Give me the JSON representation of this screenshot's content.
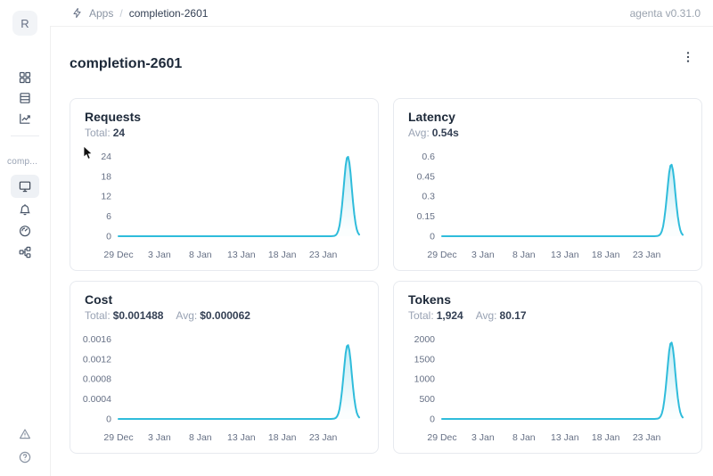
{
  "header": {
    "breadcrumb": {
      "icon": "lightning-icon",
      "apps_label": "Apps",
      "separator": "/",
      "current": "completion-2601"
    },
    "version": "agenta v0.31.0"
  },
  "sidebar": {
    "avatar_letter": "R",
    "workspace_label": "comp...",
    "top_items": [
      {
        "icon": "apps-grid-icon"
      },
      {
        "icon": "rows-icon"
      },
      {
        "icon": "line-chart-icon"
      }
    ],
    "app_items": [
      {
        "icon": "monitor-icon",
        "selected": true
      },
      {
        "icon": "bell-icon",
        "selected": false
      },
      {
        "icon": "gauge-icon",
        "selected": false
      },
      {
        "icon": "tree-structure-icon",
        "selected": false
      }
    ],
    "bottom_items": [
      {
        "icon": "alert-triangle-icon"
      },
      {
        "icon": "help-circle-icon"
      }
    ]
  },
  "page": {
    "title": "completion-2601",
    "kebab_icon": "kebab-menu-icon"
  },
  "colors": {
    "accent": "#2fbcdb",
    "tick_text": "#667085",
    "card_border": "#e7eaef"
  },
  "cards": [
    {
      "title": "Requests",
      "stats": [
        {
          "label": "Total:",
          "value": "24"
        }
      ],
      "chart_data": {
        "type": "area",
        "title": "Requests",
        "x_ticks": [
          "29 Dec",
          "3 Jan",
          "8 Jan",
          "13 Jan",
          "18 Jan",
          "23 Jan"
        ],
        "x_tick_days": [
          0,
          5,
          10,
          15,
          20,
          25
        ],
        "y_ticks": [
          {
            "value": 0,
            "label": "0"
          },
          {
            "value": 6,
            "label": "6"
          },
          {
            "value": 12,
            "label": "12"
          },
          {
            "value": 18,
            "label": "18"
          },
          {
            "value": 24,
            "label": "24"
          }
        ],
        "ylim": [
          0,
          25.2
        ],
        "domain_days": [
          0,
          29.4
        ],
        "baseline_value": 0,
        "peak": {
          "day": 28,
          "date": "26 Jan",
          "value": 24
        },
        "note": "daily requests flat at 0 from 29 Dec to 25 Jan, single spike of 24 on 26 Jan"
      }
    },
    {
      "title": "Latency",
      "stats": [
        {
          "label": "Avg:",
          "value": "0.54s"
        }
      ],
      "chart_data": {
        "type": "area",
        "title": "Latency",
        "x_ticks": [
          "29 Dec",
          "3 Jan",
          "8 Jan",
          "13 Jan",
          "18 Jan",
          "23 Jan"
        ],
        "x_tick_days": [
          0,
          5,
          10,
          15,
          20,
          25
        ],
        "y_ticks": [
          {
            "value": 0,
            "label": "0"
          },
          {
            "value": 0.15,
            "label": "0.15"
          },
          {
            "value": 0.3,
            "label": "0.3"
          },
          {
            "value": 0.45,
            "label": "0.45"
          },
          {
            "value": 0.6,
            "label": "0.6"
          }
        ],
        "ylim": [
          0,
          0.63
        ],
        "domain_days": [
          0,
          29.4
        ],
        "baseline_value": 0,
        "peak": {
          "day": 28,
          "date": "26 Jan",
          "value": 0.54
        },
        "note": "average latency 0 (no traffic) until spike of ~0.54s on 26 Jan"
      }
    },
    {
      "title": "Cost",
      "stats": [
        {
          "label": "Total:",
          "value": "$0.001488"
        },
        {
          "label": "Avg:",
          "value": "$0.000062"
        }
      ],
      "chart_data": {
        "type": "area",
        "title": "Cost",
        "x_ticks": [
          "29 Dec",
          "3 Jan",
          "8 Jan",
          "13 Jan",
          "18 Jan",
          "23 Jan"
        ],
        "x_tick_days": [
          0,
          5,
          10,
          15,
          20,
          25
        ],
        "y_ticks": [
          {
            "value": 0,
            "label": "0"
          },
          {
            "value": 0.0004,
            "label": "0.0004"
          },
          {
            "value": 0.0008,
            "label": "0.0008"
          },
          {
            "value": 0.0012,
            "label": "0.0012"
          },
          {
            "value": 0.0016,
            "label": "0.0016"
          }
        ],
        "ylim": [
          0,
          0.00168
        ],
        "domain_days": [
          0,
          29.4
        ],
        "baseline_value": 0,
        "peak": {
          "day": 28,
          "date": "26 Jan",
          "value": 0.001488
        },
        "note": "daily cost 0 until spike of $0.001488 on 26 Jan"
      }
    },
    {
      "title": "Tokens",
      "stats": [
        {
          "label": "Total:",
          "value": "1,924"
        },
        {
          "label": "Avg:",
          "value": "80.17"
        }
      ],
      "chart_data": {
        "type": "area",
        "title": "Tokens",
        "x_ticks": [
          "29 Dec",
          "3 Jan",
          "8 Jan",
          "13 Jan",
          "18 Jan",
          "23 Jan"
        ],
        "x_tick_days": [
          0,
          5,
          10,
          15,
          20,
          25
        ],
        "y_ticks": [
          {
            "value": 0,
            "label": "0"
          },
          {
            "value": 500,
            "label": "500"
          },
          {
            "value": 1000,
            "label": "1000"
          },
          {
            "value": 1500,
            "label": "1500"
          },
          {
            "value": 2000,
            "label": "2000"
          }
        ],
        "ylim": [
          0,
          2100
        ],
        "domain_days": [
          0,
          29.4
        ],
        "baseline_value": 0,
        "peak": {
          "day": 28,
          "date": "26 Jan",
          "value": 1924
        },
        "note": "daily tokens 0 until spike of 1,924 on 26 Jan"
      }
    }
  ]
}
